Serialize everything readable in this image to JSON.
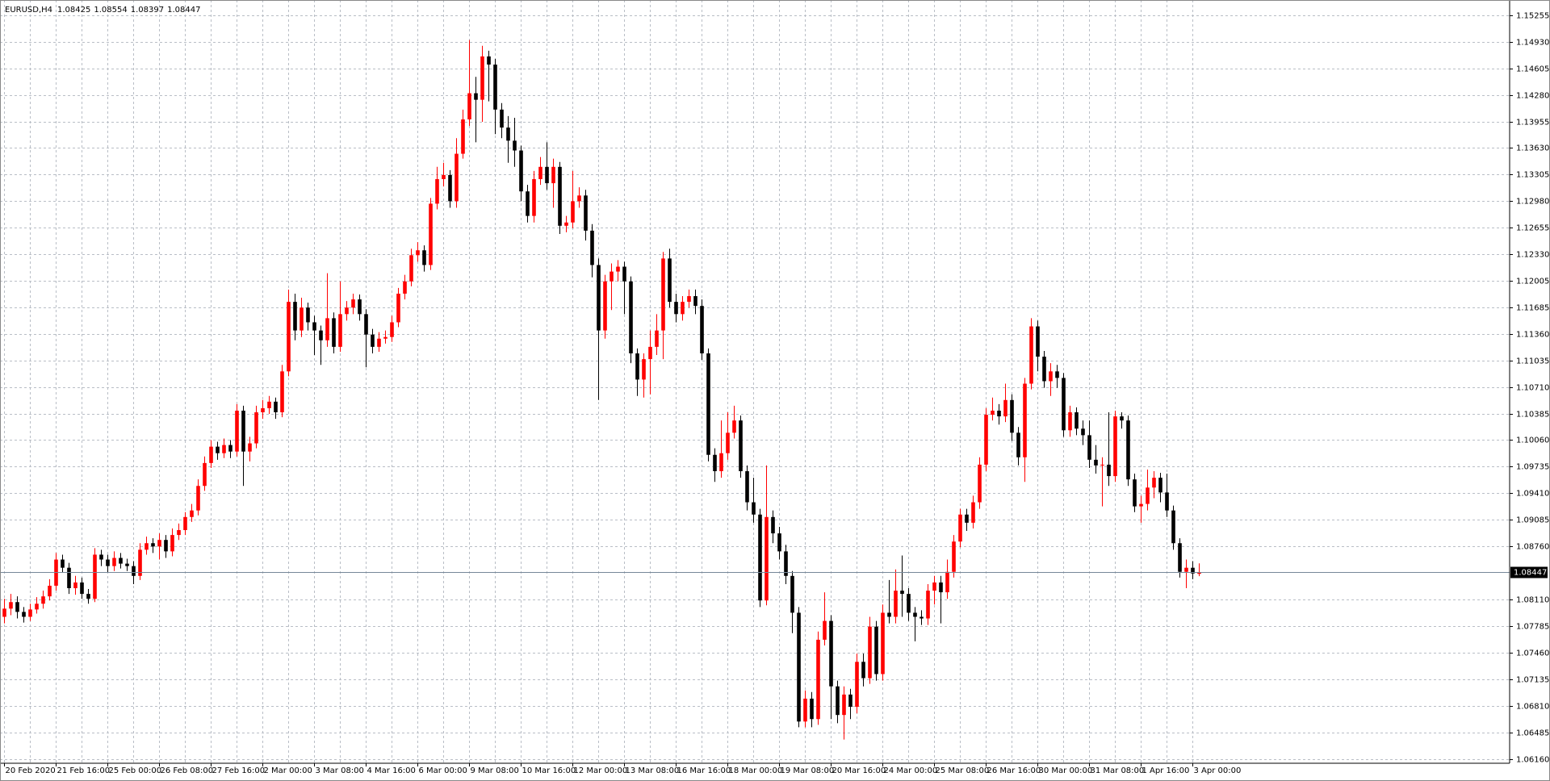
{
  "chart_data": {
    "type": "candlestick",
    "title": "EURUSD,H4",
    "header_values": [
      1.08425,
      1.08554,
      1.08397,
      1.08447
    ],
    "current_price": 1.08447,
    "up_color": "#ff0000",
    "down_color": "#000000",
    "grid": true,
    "ylim": [
      1.0612,
      1.154
    ],
    "yticks": [
      1.15255,
      {
        "value": 1.1493,
        "label": "1.14930"
      },
      1.14605,
      {
        "value": 1.1428,
        "label": "1.14280"
      },
      1.13955,
      {
        "value": 1.1363,
        "label": "1.13630"
      },
      1.13305,
      {
        "value": 1.1298,
        "label": "1.12980"
      },
      1.12655,
      {
        "value": 1.1233,
        "label": "1.12330"
      },
      1.12005,
      1.11685,
      {
        "value": 1.1136,
        "label": "1.11360"
      },
      1.11035,
      {
        "value": 1.1071,
        "label": "1.10710"
      },
      1.10385,
      {
        "value": 1.1006,
        "label": "1.10060"
      },
      1.09735,
      {
        "value": 1.0941,
        "label": "1.09410"
      },
      1.09085,
      {
        "value": 1.0876,
        "label": "1.08760"
      },
      {
        "value": 1.0811,
        "label": "1.08110"
      },
      1.07785,
      {
        "value": 1.0746,
        "label": "1.07460"
      },
      1.07135,
      {
        "value": 1.0681,
        "label": "1.06810"
      },
      1.06485,
      {
        "value": 1.0616,
        "label": "1.06160"
      }
    ],
    "categories": [
      "20 Feb 2020",
      null,
      null,
      null,
      null,
      null,
      null,
      null,
      "21 Feb 16:00",
      null,
      null,
      null,
      null,
      null,
      null,
      null,
      "25 Feb 00:00",
      null,
      null,
      null,
      null,
      null,
      null,
      null,
      "26 Feb 08:00",
      null,
      null,
      null,
      null,
      null,
      null,
      null,
      "27 Feb 16:00",
      null,
      null,
      null,
      null,
      null,
      null,
      null,
      "2 Mar 00:00",
      null,
      null,
      null,
      null,
      null,
      null,
      null,
      "3 Mar 08:00",
      null,
      null,
      null,
      null,
      null,
      null,
      null,
      "4 Mar 16:00",
      null,
      null,
      null,
      null,
      null,
      null,
      null,
      "6 Mar 00:00",
      null,
      null,
      null,
      null,
      null,
      null,
      null,
      "9 Mar 08:00",
      null,
      null,
      null,
      null,
      null,
      null,
      null,
      "10 Mar 16:00",
      null,
      null,
      null,
      null,
      null,
      null,
      null,
      "12 Mar 00:00",
      null,
      null,
      null,
      null,
      null,
      null,
      null,
      "13 Mar 08:00",
      null,
      null,
      null,
      null,
      null,
      null,
      null,
      "16 Mar 16:00",
      null,
      null,
      null,
      null,
      null,
      null,
      null,
      "18 Mar 00:00",
      null,
      null,
      null,
      null,
      null,
      null,
      null,
      "19 Mar 08:00",
      null,
      null,
      null,
      null,
      null,
      null,
      null,
      "20 Mar 16:00",
      null,
      null,
      null,
      null,
      null,
      null,
      null,
      "24 Mar 00:00",
      null,
      null,
      null,
      null,
      null,
      null,
      null,
      "25 Mar 08:00",
      null,
      null,
      null,
      null,
      null,
      null,
      null,
      "26 Mar 16:00",
      null,
      null,
      null,
      null,
      null,
      null,
      null,
      "30 Mar 00:00",
      null,
      null,
      null,
      null,
      null,
      null,
      null,
      "31 Mar 08:00",
      null,
      null,
      null,
      null,
      null,
      null,
      null,
      "1 Apr 16:00",
      null,
      null,
      null,
      null,
      null,
      null,
      null,
      "3 Apr 00:00",
      null
    ],
    "ohlc": [
      [
        1.079,
        1.0812,
        1.0782,
        1.08
      ],
      [
        1.08,
        1.0818,
        1.0792,
        1.0808
      ],
      [
        1.0808,
        1.0815,
        1.0788,
        1.0796
      ],
      [
        1.0796,
        1.0802,
        1.0783,
        1.079
      ],
      [
        1.079,
        1.0806,
        1.0785,
        1.0799
      ],
      [
        1.0799,
        1.0814,
        1.0794,
        1.0806
      ],
      [
        1.0806,
        1.0822,
        1.08,
        1.0815
      ],
      [
        1.0815,
        1.0836,
        1.081,
        1.0828
      ],
      [
        1.0828,
        1.0868,
        1.0822,
        1.086
      ],
      [
        1.086,
        1.0866,
        1.0844,
        1.085
      ],
      [
        1.085,
        1.0856,
        1.0818,
        1.0825
      ],
      [
        1.0825,
        1.084,
        1.0817,
        1.0832
      ],
      [
        1.0832,
        1.0838,
        1.0812,
        1.0818
      ],
      [
        1.0818,
        1.0824,
        1.0806,
        1.0812
      ],
      [
        1.0812,
        1.0874,
        1.0808,
        1.0866
      ],
      [
        1.0866,
        1.0872,
        1.0852,
        1.086
      ],
      [
        1.086,
        1.0866,
        1.0844,
        1.0852
      ],
      [
        1.0852,
        1.087,
        1.0846,
        1.0862
      ],
      [
        1.0862,
        1.0868,
        1.0849,
        1.0855
      ],
      [
        1.0855,
        1.0861,
        1.0846,
        1.0852
      ],
      [
        1.0852,
        1.0858,
        1.083,
        1.084
      ],
      [
        1.084,
        1.088,
        1.0835,
        1.0872
      ],
      [
        1.0872,
        1.0888,
        1.0866,
        1.088
      ],
      [
        1.088,
        1.0886,
        1.0868,
        1.0876
      ],
      [
        1.0876,
        1.0892,
        1.086,
        1.0884
      ],
      [
        1.0884,
        1.089,
        1.0862,
        1.087
      ],
      [
        1.087,
        1.0898,
        1.0864,
        1.089
      ],
      [
        1.089,
        1.0904,
        1.0884,
        1.0896
      ],
      [
        1.0896,
        1.0918,
        1.089,
        1.0912
      ],
      [
        1.0912,
        1.0928,
        1.0906,
        1.092
      ],
      [
        1.092,
        1.0958,
        1.0914,
        1.095
      ],
      [
        1.095,
        1.0986,
        1.0944,
        1.0978
      ],
      [
        1.0978,
        1.1006,
        1.0972,
        1.0998
      ],
      [
        1.0998,
        1.1004,
        1.0982,
        1.099
      ],
      [
        1.099,
        1.1008,
        1.0984,
        1.1
      ],
      [
        1.1,
        1.1006,
        1.0984,
        1.0992
      ],
      [
        1.0992,
        1.105,
        1.0986,
        1.1042
      ],
      [
        1.1042,
        1.1048,
        1.095,
        1.0992
      ],
      [
        1.0992,
        1.101,
        1.098,
        1.1002
      ],
      [
        1.1002,
        1.1048,
        1.0996,
        1.104
      ],
      [
        1.104,
        1.1055,
        1.1032,
        1.1045
      ],
      [
        1.1045,
        1.106,
        1.1038,
        1.1053
      ],
      [
        1.1053,
        1.1058,
        1.1032,
        1.104
      ],
      [
        1.104,
        1.1098,
        1.1034,
        1.109
      ],
      [
        1.109,
        1.119,
        1.1084,
        1.1175
      ],
      [
        1.1175,
        1.1185,
        1.1128,
        1.114
      ],
      [
        1.114,
        1.118,
        1.1132,
        1.1168
      ],
      [
        1.1168,
        1.1174,
        1.114,
        1.115
      ],
      [
        1.115,
        1.1158,
        1.111,
        1.114
      ],
      [
        1.114,
        1.1146,
        1.1098,
        1.1128
      ],
      [
        1.1128,
        1.121,
        1.112,
        1.1155
      ],
      [
        1.1155,
        1.1162,
        1.1112,
        1.112
      ],
      [
        1.112,
        1.12,
        1.1114,
        1.116
      ],
      [
        1.116,
        1.1176,
        1.1152,
        1.1168
      ],
      [
        1.1168,
        1.1185,
        1.116,
        1.1178
      ],
      [
        1.1178,
        1.1184,
        1.1152,
        1.116
      ],
      [
        1.116,
        1.1166,
        1.1095,
        1.1135
      ],
      [
        1.1135,
        1.1142,
        1.1112,
        1.112
      ],
      [
        1.112,
        1.1138,
        1.1114,
        1.113
      ],
      [
        1.113,
        1.114,
        1.1124,
        1.1132
      ],
      [
        1.1132,
        1.1158,
        1.1126,
        1.115
      ],
      [
        1.115,
        1.1192,
        1.1144,
        1.1185
      ],
      [
        1.1185,
        1.1208,
        1.1178,
        1.12
      ],
      [
        1.12,
        1.124,
        1.1194,
        1.1232
      ],
      [
        1.1232,
        1.1248,
        1.1224,
        1.1238
      ],
      [
        1.1238,
        1.1244,
        1.1212,
        1.122
      ],
      [
        1.122,
        1.1302,
        1.1214,
        1.1295
      ],
      [
        1.1295,
        1.134,
        1.1288,
        1.1325
      ],
      [
        1.1325,
        1.1345,
        1.1316,
        1.133
      ],
      [
        1.133,
        1.1336,
        1.129,
        1.1298
      ],
      [
        1.1298,
        1.1375,
        1.129,
        1.1356
      ],
      [
        1.1356,
        1.141,
        1.135,
        1.1398
      ],
      [
        1.1398,
        1.1495,
        1.139,
        1.143
      ],
      [
        1.143,
        1.145,
        1.137,
        1.1422
      ],
      [
        1.1422,
        1.1488,
        1.1395,
        1.1475
      ],
      [
        1.1475,
        1.1482,
        1.142,
        1.1465
      ],
      [
        1.1465,
        1.1472,
        1.138,
        1.141
      ],
      [
        1.141,
        1.1418,
        1.1375,
        1.1388
      ],
      [
        1.1388,
        1.1402,
        1.1345,
        1.1372
      ],
      [
        1.1372,
        1.14,
        1.134,
        1.136
      ],
      [
        1.136,
        1.1366,
        1.1298,
        1.131
      ],
      [
        1.131,
        1.1318,
        1.1272,
        1.128
      ],
      [
        1.128,
        1.1335,
        1.1272,
        1.1325
      ],
      [
        1.1325,
        1.1352,
        1.1318,
        1.134
      ],
      [
        1.134,
        1.137,
        1.1312,
        1.132
      ],
      [
        1.132,
        1.135,
        1.129,
        1.134
      ],
      [
        1.134,
        1.1346,
        1.1258,
        1.1268
      ],
      [
        1.1268,
        1.128,
        1.126,
        1.1272
      ],
      [
        1.1272,
        1.1335,
        1.1265,
        1.1298
      ],
      [
        1.1298,
        1.1315,
        1.129,
        1.1305
      ],
      [
        1.1305,
        1.1312,
        1.125,
        1.1262
      ],
      [
        1.1262,
        1.127,
        1.1205,
        1.122
      ],
      [
        1.122,
        1.1228,
        1.1055,
        1.114
      ],
      [
        1.114,
        1.1208,
        1.113,
        1.12
      ],
      [
        1.12,
        1.1222,
        1.1165,
        1.1212
      ],
      [
        1.1212,
        1.1226,
        1.12,
        1.1218
      ],
      [
        1.1218,
        1.1224,
        1.116,
        1.12
      ],
      [
        1.12,
        1.1206,
        1.11,
        1.1112
      ],
      [
        1.1112,
        1.1118,
        1.106,
        1.108
      ],
      [
        1.108,
        1.1112,
        1.1058,
        1.1105
      ],
      [
        1.1105,
        1.114,
        1.1062,
        1.112
      ],
      [
        1.112,
        1.116,
        1.111,
        1.114
      ],
      [
        1.114,
        1.1236,
        1.1105,
        1.1228
      ],
      [
        1.1228,
        1.124,
        1.1168,
        1.1175
      ],
      [
        1.1175,
        1.1185,
        1.115,
        1.116
      ],
      [
        1.116,
        1.1182,
        1.1152,
        1.1175
      ],
      [
        1.1175,
        1.119,
        1.1168,
        1.1182
      ],
      [
        1.1182,
        1.119,
        1.116,
        1.117
      ],
      [
        1.117,
        1.1178,
        1.1104,
        1.1112
      ],
      [
        1.1112,
        1.1118,
        1.098,
        1.0988
      ],
      [
        1.0988,
        1.0996,
        1.0955,
        1.0968
      ],
      [
        1.0968,
        1.103,
        1.096,
        1.099
      ],
      [
        1.099,
        1.104,
        1.0982,
        1.1015
      ],
      [
        1.1015,
        1.1048,
        1.1008,
        1.103
      ],
      [
        1.103,
        1.1036,
        1.096,
        1.0968
      ],
      [
        1.0968,
        1.0975,
        1.092,
        1.093
      ],
      [
        1.093,
        1.096,
        1.0905,
        1.0915
      ],
      [
        1.0915,
        1.0922,
        1.0802,
        1.081
      ],
      [
        1.081,
        1.0975,
        1.0804,
        1.0912
      ],
      [
        1.0912,
        1.092,
        1.088,
        1.0892
      ],
      [
        1.0892,
        1.09,
        1.086,
        1.087
      ],
      [
        1.087,
        1.0878,
        1.083,
        1.084
      ],
      [
        1.084,
        1.0846,
        1.077,
        1.0795
      ],
      [
        1.0795,
        1.0802,
        1.0655,
        1.0662
      ],
      [
        1.0662,
        1.07,
        1.0655,
        1.069
      ],
      [
        1.069,
        1.0698,
        1.0655,
        1.0665
      ],
      [
        1.0665,
        1.0772,
        1.0658,
        1.0762
      ],
      [
        1.0762,
        1.082,
        1.0755,
        1.0785
      ],
      [
        1.0785,
        1.0792,
        1.0665,
        1.0705
      ],
      [
        1.0705,
        1.0712,
        1.066,
        1.067
      ],
      [
        1.067,
        1.0705,
        1.064,
        1.0695
      ],
      [
        1.0695,
        1.0702,
        1.0665,
        1.068
      ],
      [
        1.068,
        1.0745,
        1.0672,
        1.0735
      ],
      [
        1.0735,
        1.0745,
        1.0705,
        1.0715
      ],
      [
        1.0715,
        1.079,
        1.0708,
        1.0778
      ],
      [
        1.0778,
        1.0785,
        1.0712,
        1.072
      ],
      [
        1.072,
        1.0805,
        1.0712,
        1.0795
      ],
      [
        1.0795,
        1.0835,
        1.0782,
        1.079
      ],
      [
        1.079,
        1.0848,
        1.0782,
        1.0822
      ],
      [
        1.0822,
        1.0865,
        1.079,
        1.0818
      ],
      [
        1.0818,
        1.0825,
        1.0785,
        1.0795
      ],
      [
        1.0795,
        1.0802,
        1.076,
        1.079
      ],
      [
        1.079,
        1.0798,
        1.078,
        1.0788
      ],
      [
        1.0788,
        1.083,
        1.078,
        1.0822
      ],
      [
        1.0822,
        1.084,
        1.0805,
        1.0832
      ],
      [
        1.0832,
        1.084,
        1.0782,
        1.082
      ],
      [
        1.082,
        1.086,
        1.0812,
        1.0845
      ],
      [
        1.0845,
        1.089,
        1.0838,
        1.0882
      ],
      [
        1.0882,
        1.0922,
        1.0875,
        1.0915
      ],
      [
        1.0915,
        1.0922,
        1.0895,
        1.0905
      ],
      [
        1.0905,
        1.0938,
        1.0898,
        1.093
      ],
      [
        1.093,
        1.0985,
        1.0922,
        1.0976
      ],
      [
        1.0976,
        1.1045,
        1.0968,
        1.1037
      ],
      [
        1.1037,
        1.1058,
        1.103,
        1.1042
      ],
      [
        1.1042,
        1.105,
        1.1025,
        1.1035
      ],
      [
        1.1035,
        1.1075,
        1.1028,
        1.1055
      ],
      [
        1.1055,
        1.1062,
        1.1005,
        1.1015
      ],
      [
        1.1015,
        1.1022,
        1.0975,
        1.0985
      ],
      [
        1.0985,
        1.1082,
        1.0955,
        1.1075
      ],
      [
        1.1075,
        1.1155,
        1.1068,
        1.1145
      ],
      [
        1.1145,
        1.1152,
        1.109,
        1.1108
      ],
      [
        1.1108,
        1.1115,
        1.107,
        1.1078
      ],
      [
        1.1078,
        1.11,
        1.106,
        1.109
      ],
      [
        1.109,
        1.1098,
        1.107,
        1.1082
      ],
      [
        1.1082,
        1.1088,
        1.101,
        1.1018
      ],
      [
        1.1018,
        1.1048,
        1.101,
        1.104
      ],
      [
        1.104,
        1.1046,
        1.1012,
        1.102
      ],
      [
        1.102,
        1.103,
        1.1,
        1.1012
      ],
      [
        1.1012,
        1.103,
        1.0972,
        1.0982
      ],
      [
        1.0982,
        1.1,
        1.0965,
        1.0975
      ],
      [
        1.0975,
        1.0985,
        1.0925,
        1.0976
      ],
      [
        1.0976,
        1.104,
        1.095,
        1.0962
      ],
      [
        1.0962,
        1.1042,
        1.0955,
        1.1035
      ],
      [
        1.1035,
        1.104,
        1.102,
        1.103
      ],
      [
        1.103,
        1.1036,
        1.095,
        1.0958
      ],
      [
        1.0958,
        1.0965,
        1.0918,
        1.0925
      ],
      [
        1.0925,
        1.0938,
        1.0905,
        1.0928
      ],
      [
        1.0928,
        1.097,
        1.092,
        1.0948
      ],
      [
        1.0948,
        1.0968,
        1.0935,
        1.096
      ],
      [
        1.096,
        1.0966,
        1.093,
        1.0942
      ],
      [
        1.0942,
        1.0965,
        1.0912,
        1.092
      ],
      [
        1.092,
        1.0926,
        1.0872,
        1.088
      ],
      [
        1.088,
        1.0886,
        1.0838,
        1.0845
      ],
      [
        1.0845,
        1.086,
        1.0825,
        1.085
      ],
      [
        1.085,
        1.0858,
        1.0836,
        1.0843
      ],
      [
        1.08425,
        1.08554,
        1.08397,
        1.08447
      ]
    ]
  }
}
